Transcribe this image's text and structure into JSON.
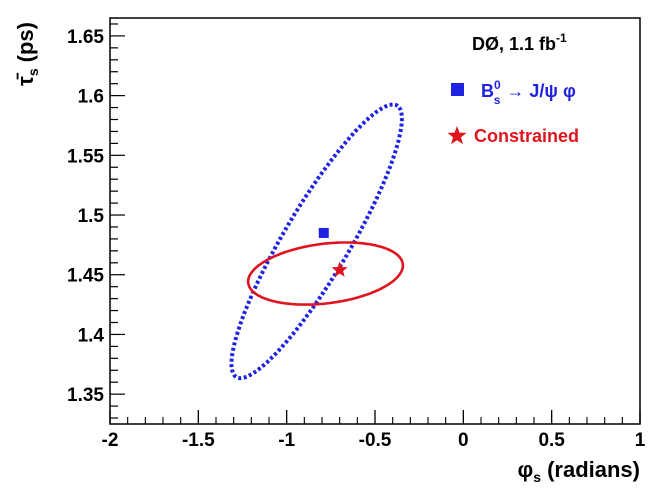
{
  "chart_data": {
    "type": "scatter",
    "title": "",
    "xlabel": "φs (radians)",
    "xlabel_symbol": "φ",
    "xlabel_sub": "s",
    "xlabel_rest": "(radians)",
    "ylabel": "τ̄s (ps)",
    "ylabel_symbol": "τ̄",
    "ylabel_sub": "s",
    "ylabel_rest": "(ps)",
    "xlim": [
      -2,
      1
    ],
    "ylim": [
      1.325,
      1.665
    ],
    "xticks": [
      -2,
      -1.5,
      -1,
      -0.5,
      0,
      0.5,
      1
    ],
    "xtick_labels": [
      "-2",
      "-1.5",
      "-1",
      "-0.5",
      "0",
      "0.5",
      "1"
    ],
    "yticks": [
      1.35,
      1.4,
      1.45,
      1.5,
      1.55,
      1.6,
      1.65
    ],
    "ytick_labels": [
      "1.35",
      "1.4",
      "1.45",
      "1.5",
      "1.55",
      "1.6",
      "1.65"
    ],
    "grid": false,
    "annotation": {
      "experiment": "DØ, 1.1 fb",
      "exponent": "-1"
    },
    "legend": {
      "placement": "top-right",
      "entries": [
        {
          "series": "bs_jpsi_phi",
          "marker": "square",
          "label_pre": "B",
          "label_sup": "0",
          "label_sub": "s",
          "label_post": "→ J/ψ φ"
        },
        {
          "series": "constrained",
          "marker": "star",
          "label_pre": "Constrained"
        }
      ]
    },
    "series": [
      {
        "key": "bs_jpsi_phi",
        "name": "B⁰s → J/ψ φ",
        "color": "#1f22e0",
        "marker": "square",
        "point": {
          "x": -0.79,
          "y": 1.485
        },
        "contour": {
          "style": "dotted",
          "cx": -0.83,
          "cy": 1.478,
          "a": 0.82,
          "b": 0.18,
          "angle_deg": 56
        }
      },
      {
        "key": "constrained",
        "name": "Constrained",
        "color": "#e0141e",
        "marker": "star",
        "point": {
          "x": -0.7,
          "y": 1.454
        },
        "contour": {
          "style": "solid",
          "cx": -0.78,
          "cy": 1.451,
          "a": 0.44,
          "b": 0.15,
          "angle_deg": 6
        }
      }
    ]
  }
}
